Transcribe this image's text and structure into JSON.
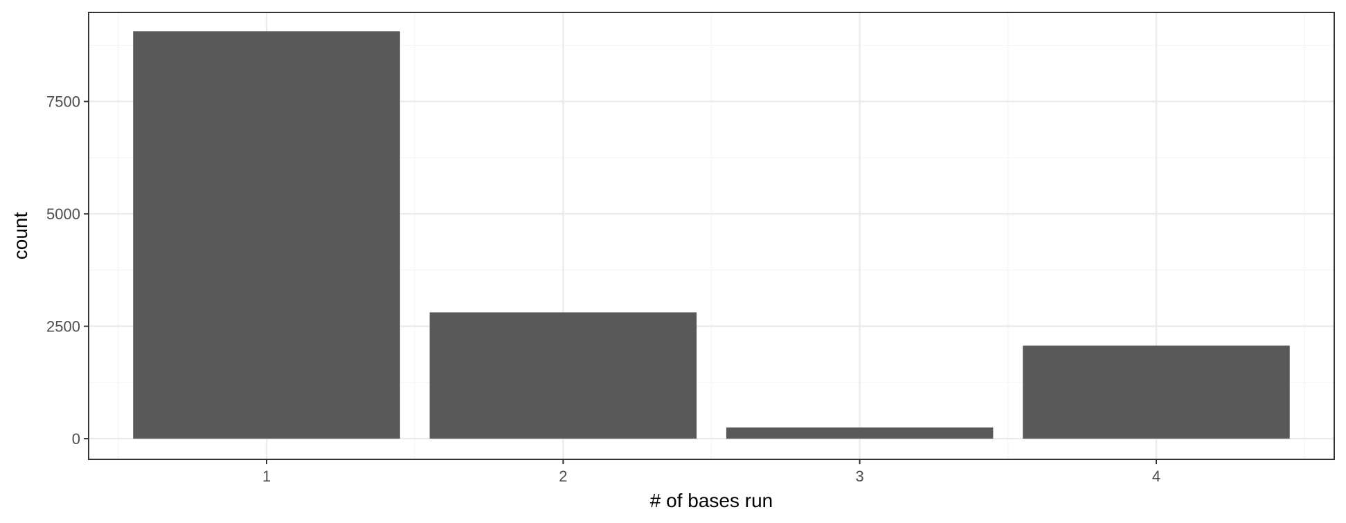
{
  "chart_data": {
    "type": "bar",
    "categories": [
      "1",
      "2",
      "3",
      "4"
    ],
    "values": [
      9060,
      2810,
      250,
      2070
    ],
    "title": "",
    "xlabel": "# of bases run",
    "ylabel": "count",
    "ylim": [
      -460,
      9480
    ],
    "yticks": [
      0,
      2500,
      5000,
      7500
    ],
    "ytick_labels": [
      "0",
      "2500",
      "5000",
      "7500"
    ],
    "grid": true,
    "legend": "none"
  },
  "colors": {
    "bar_fill": "#595959",
    "panel_border": "#333333",
    "grid_major": "#ebebeb",
    "grid_minor": "#f5f5f5",
    "tick_label": "#4d4d4d",
    "axis_title": "#000000",
    "background": "#ffffff"
  }
}
